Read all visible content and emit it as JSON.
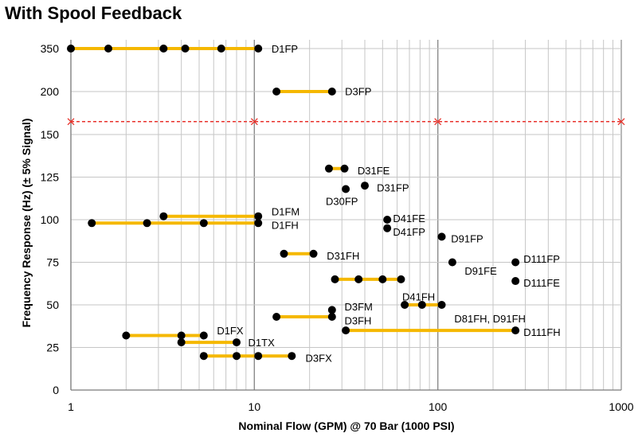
{
  "chart_data": {
    "type": "scatter",
    "title": "With Spool Feedback",
    "xlabel": "Nominal Flow (GPM) @ 70 Bar (1000 PSI)",
    "ylabel": "Frequency Response (Hz) (± 5% Signal)",
    "x_scale": "log",
    "xlim": [
      1,
      1000
    ],
    "ylim": [
      0,
      350
    ],
    "x_ticks": [
      1,
      10,
      100,
      1000
    ],
    "y_ticks": [
      0,
      25,
      50,
      75,
      100,
      125,
      150,
      200,
      350
    ],
    "grid": true,
    "colors": {
      "range": "#f5b800",
      "point": "#000000",
      "threshold": "#e8322b"
    },
    "threshold": {
      "y": 165,
      "points": [
        1,
        10,
        100,
        1000
      ]
    },
    "ranges": [
      {
        "x": [
          1,
          10.5
        ],
        "y": 350
      },
      {
        "x": [
          13.2,
          26.5
        ],
        "y": 200
      },
      {
        "x": [
          25.5,
          31
        ],
        "y": 130
      },
      {
        "x": [
          3.2,
          10.5
        ],
        "y": 102
      },
      {
        "x": [
          1.3,
          10.5
        ],
        "y": 98
      },
      {
        "x": [
          14.5,
          21
        ],
        "y": 80
      },
      {
        "x": [
          27.5,
          63
        ],
        "y": 65
      },
      {
        "x": [
          66,
          105
        ],
        "y": 50
      },
      {
        "x": [
          13.2,
          26.5
        ],
        "y": 43
      },
      {
        "x": [
          31.5,
          265
        ],
        "y": 35
      },
      {
        "x": [
          2,
          5.3
        ],
        "y": 32
      },
      {
        "x": [
          4,
          8
        ],
        "y": 28
      },
      {
        "x": [
          5.3,
          16
        ],
        "y": 20
      }
    ],
    "points": [
      {
        "x": 1,
        "y": 350
      },
      {
        "x": 1.6,
        "y": 350
      },
      {
        "x": 3.2,
        "y": 350
      },
      {
        "x": 4.2,
        "y": 350
      },
      {
        "x": 6.6,
        "y": 350
      },
      {
        "x": 10.5,
        "y": 350
      },
      {
        "x": 13.2,
        "y": 200
      },
      {
        "x": 26.5,
        "y": 200
      },
      {
        "x": 25.5,
        "y": 130
      },
      {
        "x": 31,
        "y": 130
      },
      {
        "x": 40,
        "y": 120
      },
      {
        "x": 31.5,
        "y": 118
      },
      {
        "x": 3.2,
        "y": 102
      },
      {
        "x": 10.5,
        "y": 102
      },
      {
        "x": 1.3,
        "y": 98
      },
      {
        "x": 2.6,
        "y": 98
      },
      {
        "x": 5.3,
        "y": 98
      },
      {
        "x": 10.5,
        "y": 98
      },
      {
        "x": 53,
        "y": 100
      },
      {
        "x": 53,
        "y": 95
      },
      {
        "x": 105,
        "y": 90
      },
      {
        "x": 14.5,
        "y": 80
      },
      {
        "x": 21,
        "y": 80
      },
      {
        "x": 120,
        "y": 75
      },
      {
        "x": 265,
        "y": 75
      },
      {
        "x": 265,
        "y": 64
      },
      {
        "x": 27.5,
        "y": 65
      },
      {
        "x": 37,
        "y": 65
      },
      {
        "x": 50,
        "y": 65
      },
      {
        "x": 63,
        "y": 65
      },
      {
        "x": 66,
        "y": 50
      },
      {
        "x": 82,
        "y": 50
      },
      {
        "x": 105,
        "y": 50
      },
      {
        "x": 26.5,
        "y": 47
      },
      {
        "x": 13.2,
        "y": 43
      },
      {
        "x": 26.5,
        "y": 43
      },
      {
        "x": 31.5,
        "y": 35
      },
      {
        "x": 265,
        "y": 35
      },
      {
        "x": 2,
        "y": 32
      },
      {
        "x": 4,
        "y": 32
      },
      {
        "x": 5.3,
        "y": 32
      },
      {
        "x": 4,
        "y": 28
      },
      {
        "x": 8,
        "y": 28
      },
      {
        "x": 5.3,
        "y": 20
      },
      {
        "x": 8,
        "y": 20
      },
      {
        "x": 10.5,
        "y": 20
      },
      {
        "x": 16,
        "y": 20
      }
    ],
    "annotations": [
      {
        "text": "D1FP",
        "x": 12.4,
        "y": 352
      },
      {
        "text": "D3FP",
        "x": 31.2,
        "y": 202
      },
      {
        "text": "D31FE",
        "x": 36.5,
        "y": 129
      },
      {
        "text": "D31FP",
        "x": 46.5,
        "y": 119
      },
      {
        "text": "D30FP",
        "x": 24.5,
        "y": 111
      },
      {
        "text": "D1FM",
        "x": 12.4,
        "y": 105
      },
      {
        "text": "D1FH",
        "x": 12.4,
        "y": 97
      },
      {
        "text": "D41FE",
        "x": 57,
        "y": 101
      },
      {
        "text": "D41FP",
        "x": 57,
        "y": 93
      },
      {
        "text": "D91FP",
        "x": 118,
        "y": 89
      },
      {
        "text": "D31FH",
        "x": 24.8,
        "y": 79
      },
      {
        "text": "D111FP",
        "x": 293,
        "y": 77
      },
      {
        "text": "D91FE",
        "x": 140,
        "y": 70
      },
      {
        "text": "D111FE",
        "x": 293,
        "y": 63
      },
      {
        "text": "D41FH",
        "x": 64,
        "y": 55
      },
      {
        "text": "D3FM",
        "x": 31,
        "y": 49
      },
      {
        "text": "D81FH, D91FH",
        "x": 123,
        "y": 42
      },
      {
        "text": "D3FH",
        "x": 31,
        "y": 41
      },
      {
        "text": "D111FH",
        "x": 293,
        "y": 34
      },
      {
        "text": "D1FX",
        "x": 6.25,
        "y": 35
      },
      {
        "text": "D1TX",
        "x": 9.25,
        "y": 28
      },
      {
        "text": "D3FX",
        "x": 19,
        "y": 19
      }
    ]
  }
}
